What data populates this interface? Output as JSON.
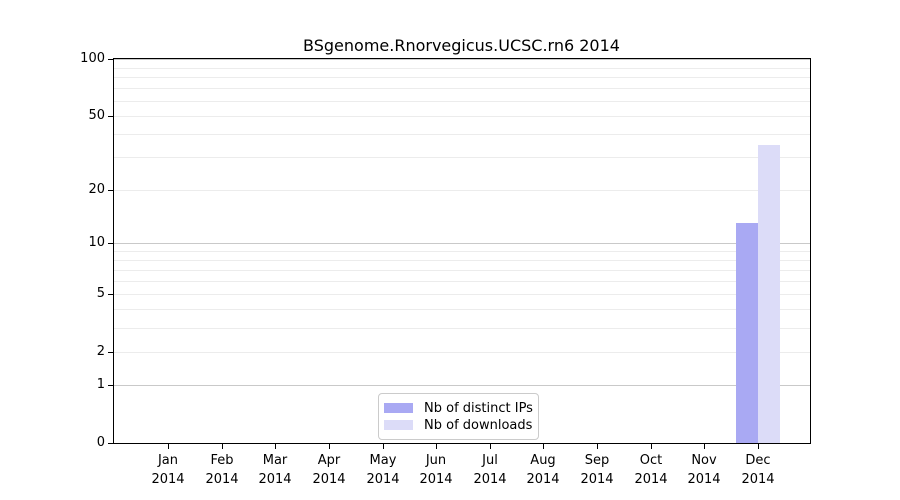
{
  "chart_data": {
    "type": "bar",
    "title": "BSgenome.Rnorvegicus.UCSC.rn6 2014",
    "categories": [
      {
        "month": "Jan",
        "year": "2014"
      },
      {
        "month": "Feb",
        "year": "2014"
      },
      {
        "month": "Mar",
        "year": "2014"
      },
      {
        "month": "Apr",
        "year": "2014"
      },
      {
        "month": "May",
        "year": "2014"
      },
      {
        "month": "Jun",
        "year": "2014"
      },
      {
        "month": "Jul",
        "year": "2014"
      },
      {
        "month": "Aug",
        "year": "2014"
      },
      {
        "month": "Sep",
        "year": "2014"
      },
      {
        "month": "Oct",
        "year": "2014"
      },
      {
        "month": "Nov",
        "year": "2014"
      },
      {
        "month": "Dec",
        "year": "2014"
      }
    ],
    "series": [
      {
        "name": "Nb of distinct IPs",
        "color": "#a9a9f3",
        "values": [
          0,
          0,
          0,
          0,
          0,
          0,
          0,
          0,
          0,
          0,
          0,
          13
        ]
      },
      {
        "name": "Nb of downloads",
        "color": "#dcdcf8",
        "values": [
          0,
          0,
          0,
          0,
          0,
          0,
          0,
          0,
          0,
          0,
          0,
          35
        ]
      }
    ],
    "y_axis": {
      "scale": "log1p",
      "ticks": [
        0,
        1,
        2,
        5,
        10,
        20,
        50,
        100
      ],
      "range": [
        0,
        115
      ]
    },
    "gridlines": {
      "dark": [
        1,
        10,
        100
      ],
      "light": [
        2,
        3,
        4,
        5,
        6,
        7,
        8,
        9,
        20,
        30,
        40,
        50,
        60,
        70,
        80,
        90
      ]
    },
    "legend": {
      "position": "lower center",
      "entries": [
        "Nb of distinct IPs",
        "Nb of downloads"
      ]
    },
    "grid": true
  },
  "colors": {
    "bar_distinct_ips": "#a9a9f3",
    "bar_downloads": "#dcdcf8",
    "grid_dark": "#c9c9c9",
    "grid_light": "#ececec",
    "axis": "#000000",
    "legend_border": "#cbcbcb",
    "background": "#ffffff"
  }
}
